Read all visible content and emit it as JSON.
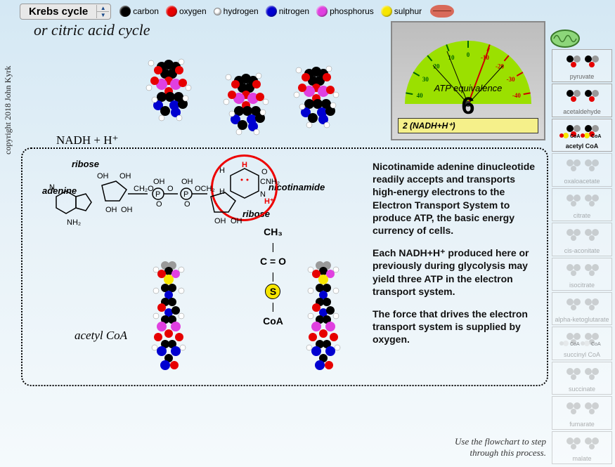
{
  "title": "Krebs cycle",
  "subtitle": "or citric acid cycle",
  "copyright": "copyright 2018 John Kyrk",
  "legend": [
    {
      "label": "carbon",
      "color": "#000000",
      "size": 16
    },
    {
      "label": "oxygen",
      "color": "#e60000",
      "size": 16
    },
    {
      "label": "hydrogen",
      "color": "#ffffff",
      "size": 11
    },
    {
      "label": "nitrogen",
      "color": "#0000d0",
      "size": 16
    },
    {
      "label": "phosphorus",
      "color": "#e040e0",
      "size": 16
    },
    {
      "label": "sulphur",
      "color": "#f7e600",
      "size": 16
    }
  ],
  "gauge": {
    "label": "ATP equivalence",
    "value": "6",
    "strip": "2 (NADH+H⁺)",
    "dial_bg": "#9be000",
    "ticks": [
      -40,
      -30,
      -20,
      -10,
      0,
      10,
      20,
      30,
      40
    ],
    "needle_angle": 15
  },
  "sidebar": [
    {
      "label": "pyruvate",
      "active": false,
      "faded": false
    },
    {
      "label": "acetaldehyde",
      "active": false,
      "faded": false
    },
    {
      "label": "acetyl CoA",
      "active": true,
      "faded": false,
      "badge": "CoA"
    },
    {
      "label": "oxaloacetate",
      "active": false,
      "faded": true
    },
    {
      "label": "citrate",
      "active": false,
      "faded": true
    },
    {
      "label": "cis-aconitate",
      "active": false,
      "faded": true
    },
    {
      "label": "isocitrate",
      "active": false,
      "faded": true
    },
    {
      "label": "alpha-ketoglutarate",
      "active": false,
      "faded": true
    },
    {
      "label": "succinyl CoA",
      "active": false,
      "faded": true,
      "badge": "CoA"
    },
    {
      "label": "succinate",
      "active": false,
      "faded": true
    },
    {
      "label": "fumarate",
      "active": false,
      "faded": true
    },
    {
      "label": "malate",
      "active": false,
      "faded": true
    }
  ],
  "nadh_label": "NADH  +  H⁺",
  "acetyl_label": "acetyl CoA",
  "structure_labels": {
    "ribose": "ribose",
    "adenine": "adenine",
    "nicotinamide": "nicotinamide",
    "ribose2": "ribose"
  },
  "coa_column": {
    "ch3": "CH₃",
    "c": "C",
    "o": "O",
    "s": "S",
    "coa": "CoA"
  },
  "paragraphs": [
    "Nicotinamide adenine dinucleotide readily accepts and transports high-energy electrons to the Electron Transport System to produce ATP, the basic energy currency of cells.",
    "Each NADH+H⁺ produced here or previously during glycolysis may yield three ATP in the electron transport system.",
    "The force that drives the electron transport system is supplied by oxygen."
  ],
  "hint": "Use the flowchart to step through this process.",
  "colors": {
    "carbon": "#000000",
    "oxygen": "#e60000",
    "hydrogen": "#ffffff",
    "nitrogen": "#0000d0",
    "phosphorus": "#e040e0",
    "sulphur": "#f7e600",
    "grey": "#9a9a9a"
  }
}
